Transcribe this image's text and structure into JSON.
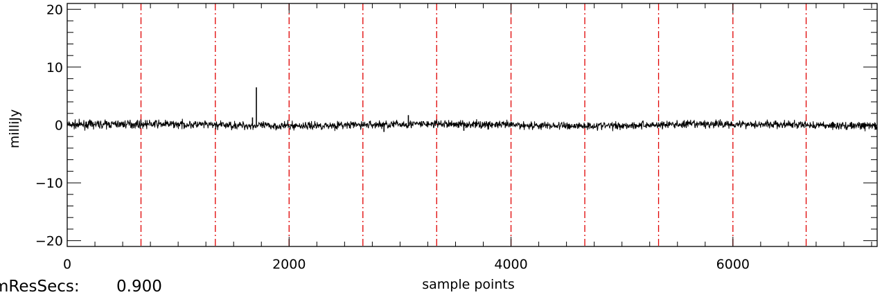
{
  "chart_data": {
    "type": "line",
    "title": "",
    "xlabel": "sample points",
    "ylabel": "milliJy",
    "xlim": [
      0,
      7300
    ],
    "ylim": [
      -21,
      21
    ],
    "x_ticks": [
      0,
      2000,
      4000,
      6000
    ],
    "x_tick_labels": [
      "0",
      "2000",
      "4000",
      "6000"
    ],
    "x_minor_step": 250,
    "y_ticks": [
      -20,
      -10,
      0,
      10,
      20
    ],
    "y_tick_labels": [
      "−20",
      "−10",
      "0",
      "10",
      "20"
    ],
    "y_minor_step": 2,
    "series": [
      {
        "color": "#000000",
        "noise_amplitude": 0.35,
        "baseline": 0,
        "spikes": [
          {
            "x": 1705,
            "y": 6.5
          },
          {
            "x": 1670,
            "y": 1.3
          },
          {
            "x": 3075,
            "y": 1.7
          },
          {
            "x": 2855,
            "y": -1.2
          },
          {
            "x": 3575,
            "y": -1.0
          }
        ]
      }
    ],
    "segment_boundaries": {
      "color": "#e00000",
      "style": "dash-dot",
      "x": [
        665,
        1335,
        2000,
        2665,
        3330,
        4000,
        4665,
        5330,
        6000,
        6660
      ]
    },
    "grid": false,
    "legend": "none"
  },
  "footer": {
    "label": "mResSecs:",
    "value": "0.900"
  }
}
